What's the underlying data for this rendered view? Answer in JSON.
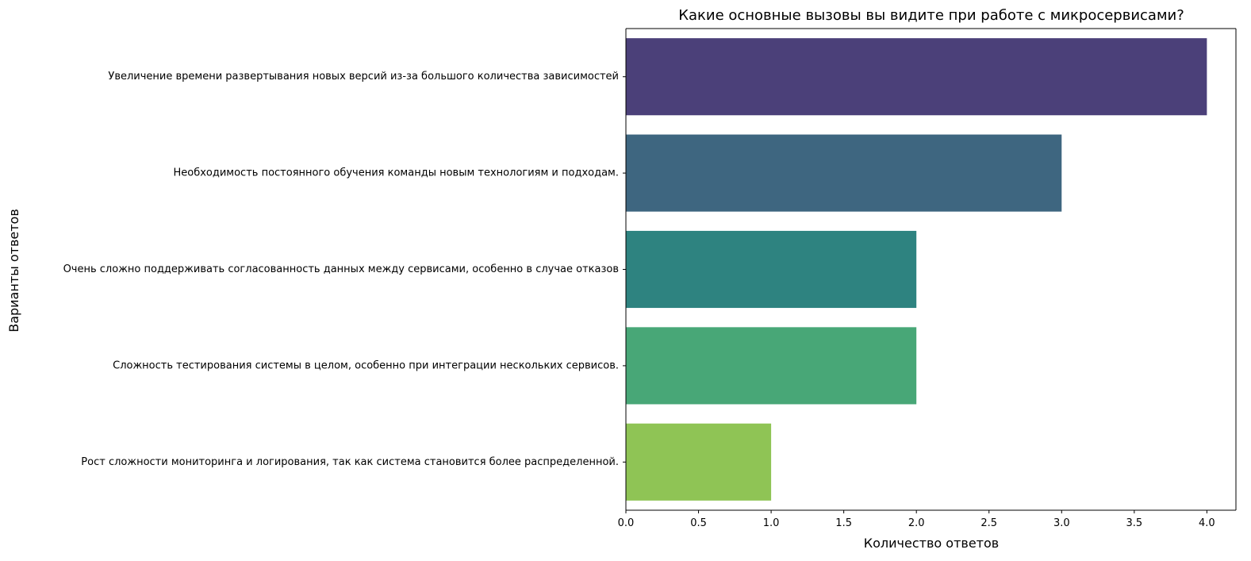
{
  "chart_data": {
    "type": "bar",
    "orientation": "horizontal",
    "title": "Какие основные вызовы вы видите при работе с микросервисами?",
    "xlabel": "Количество ответов",
    "ylabel": "Варианты ответов",
    "categories": [
      "Увеличение времени развертывания новых версий из-за большого количества зависимостей",
      "Необходимость постоянного обучения команды новым технологиям и подходам.",
      "Очень сложно поддерживать согласованность данных между сервисами, особенно в случае отказов",
      "Сложность тестирования системы в целом, особенно при интеграции нескольких сервисов.",
      "Рост сложности мониторинга и логирования, так как система становится более распределенной."
    ],
    "values": [
      4,
      3,
      2,
      2,
      1
    ],
    "colors": [
      "#4b4079",
      "#3e6680",
      "#2e8380",
      "#48a777",
      "#8fc455"
    ],
    "xlim": [
      0,
      4.2
    ],
    "xticks": [
      0.0,
      0.5,
      1.0,
      1.5,
      2.0,
      2.5,
      3.0,
      3.5,
      4.0
    ],
    "xtick_labels": [
      "0.0",
      "0.5",
      "1.0",
      "1.5",
      "2.0",
      "2.5",
      "3.0",
      "3.5",
      "4.0"
    ],
    "grid": false,
    "legend": "none"
  }
}
